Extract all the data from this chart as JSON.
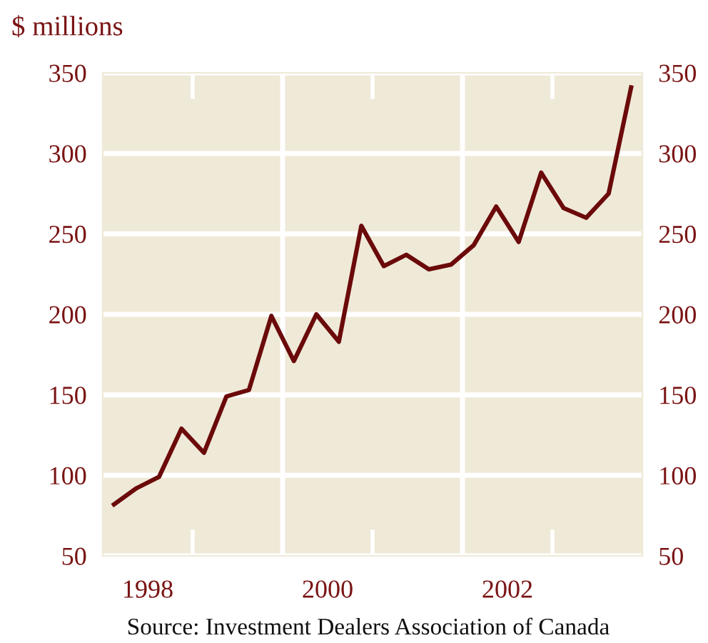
{
  "chart_data": {
    "type": "line",
    "ylabel": "$ millions",
    "x": [
      1998.125,
      1998.375,
      1998.625,
      1998.875,
      1999.125,
      1999.375,
      1999.625,
      1999.875,
      2000.125,
      2000.375,
      2000.625,
      2000.875,
      2001.125,
      2001.375,
      2001.625,
      2001.875,
      2002.125,
      2002.375,
      2002.625,
      2002.875,
      2003.125,
      2003.375,
      2003.625,
      2003.875
    ],
    "series": [
      {
        "color": "#6b0a0a",
        "values": [
          82,
          92,
          99,
          129,
          114,
          149,
          153,
          199,
          171,
          200,
          183,
          255,
          230,
          237,
          228,
          231,
          243,
          267,
          245,
          288,
          266,
          260,
          275,
          341
        ]
      }
    ],
    "xlim": [
      1998,
      2004
    ],
    "xticks": [
      {
        "value": 1998.5,
        "label": "1998"
      },
      {
        "value": 2000.5,
        "label": "2000"
      },
      {
        "value": 2002.5,
        "label": "2002"
      }
    ],
    "ylim": [
      50,
      350
    ],
    "yticks": [
      50,
      100,
      150,
      200,
      250,
      300,
      350
    ],
    "y2lim": [
      50,
      350
    ],
    "y2ticks": [
      50,
      100,
      150,
      200,
      250,
      300,
      350
    ],
    "ref_lines": [
      {
        "axis": "x",
        "value": 2000,
        "color": "#ffffff"
      },
      {
        "axis": "x",
        "value": 2002,
        "color": "#ffffff"
      }
    ],
    "grid": "y",
    "legend": false,
    "marker": "none",
    "line_style": "solid",
    "annotations": [
      "Source: Investment Dealers Association of Canada"
    ]
  }
}
